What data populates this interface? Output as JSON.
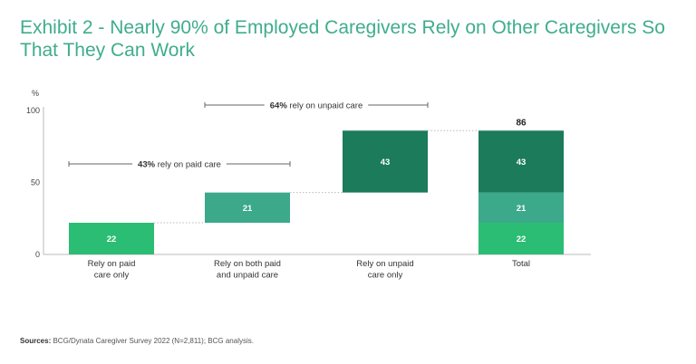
{
  "title": "Exhibit 2 - Nearly 90% of Employed Caregivers Rely on Other Caregivers So That They Can Work",
  "source": {
    "label": "Sources:",
    "text": "BCG/Dynata Caregiver Survey 2022 (N=2,811); BCG analysis."
  },
  "chart_data": {
    "type": "bar",
    "subtype": "waterfall",
    "ylabel": "%",
    "ylim": [
      0,
      100
    ],
    "yticks": [
      0,
      50,
      100
    ],
    "categories": [
      [
        "Rely on paid",
        "care only"
      ],
      [
        "Rely on both paid",
        "and unpaid care"
      ],
      [
        "Rely on unpaid",
        "care only"
      ],
      [
        "Total"
      ]
    ],
    "steps": [
      {
        "name": "paid",
        "value": 22,
        "base": 0,
        "color": "#2bbd73"
      },
      {
        "name": "both",
        "value": 21,
        "base": 22,
        "color": "#3ba98a"
      },
      {
        "name": "unpaid",
        "value": 43,
        "base": 43,
        "color": "#1b7b5a"
      }
    ],
    "total": {
      "value": 86,
      "stack": [
        {
          "value": 22,
          "color": "#2bbd73"
        },
        {
          "value": 21,
          "color": "#3ba98a"
        },
        {
          "value": 43,
          "color": "#1b7b5a"
        }
      ]
    },
    "annotations": [
      {
        "bold": "43%",
        "text": " rely on paid care",
        "span": [
          0,
          1
        ]
      },
      {
        "bold": "64%",
        "text": " rely on unpaid care",
        "span": [
          1,
          2
        ]
      }
    ]
  }
}
